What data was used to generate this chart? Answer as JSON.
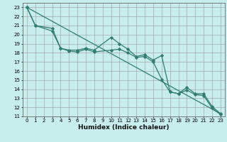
{
  "title": "",
  "xlabel": "Humidex (Indice chaleur)",
  "bg_color": "#c8eded",
  "grid_color": "#999999",
  "line_color": "#2e7d6e",
  "xlim": [
    -0.5,
    23.5
  ],
  "ylim": [
    11,
    23.5
  ],
  "xticks": [
    0,
    1,
    2,
    3,
    4,
    5,
    6,
    7,
    8,
    9,
    10,
    11,
    12,
    13,
    14,
    15,
    16,
    17,
    18,
    19,
    20,
    21,
    22,
    23
  ],
  "yticks": [
    11,
    12,
    13,
    14,
    15,
    16,
    17,
    18,
    19,
    20,
    21,
    22,
    23
  ],
  "line1_x": [
    0,
    23
  ],
  "line1_y": [
    23,
    11.3
  ],
  "line2_x": [
    0,
    1,
    3,
    4,
    5,
    6,
    7,
    8,
    10,
    11,
    12,
    13,
    14,
    15,
    16,
    17,
    18,
    19,
    20,
    21,
    22,
    23
  ],
  "line2_y": [
    23,
    21.0,
    20.7,
    18.5,
    18.3,
    18.3,
    18.5,
    18.3,
    19.7,
    19.0,
    18.4,
    17.6,
    17.8,
    17.2,
    17.7,
    13.7,
    13.5,
    14.2,
    13.5,
    13.5,
    12.1,
    11.3
  ],
  "line3_x": [
    0,
    1,
    3,
    4,
    5,
    6,
    7,
    8,
    10,
    11,
    12,
    13,
    14,
    15,
    16,
    17,
    18,
    19,
    20,
    21,
    22,
    23
  ],
  "line3_y": [
    23,
    21.0,
    20.4,
    18.5,
    18.2,
    18.1,
    18.4,
    18.1,
    18.3,
    18.4,
    18.0,
    17.5,
    17.6,
    17.0,
    15.1,
    13.7,
    13.5,
    13.9,
    13.4,
    13.3,
    11.9,
    11.2
  ],
  "tick_fontsize": 5.0,
  "xlabel_fontsize": 6.5
}
